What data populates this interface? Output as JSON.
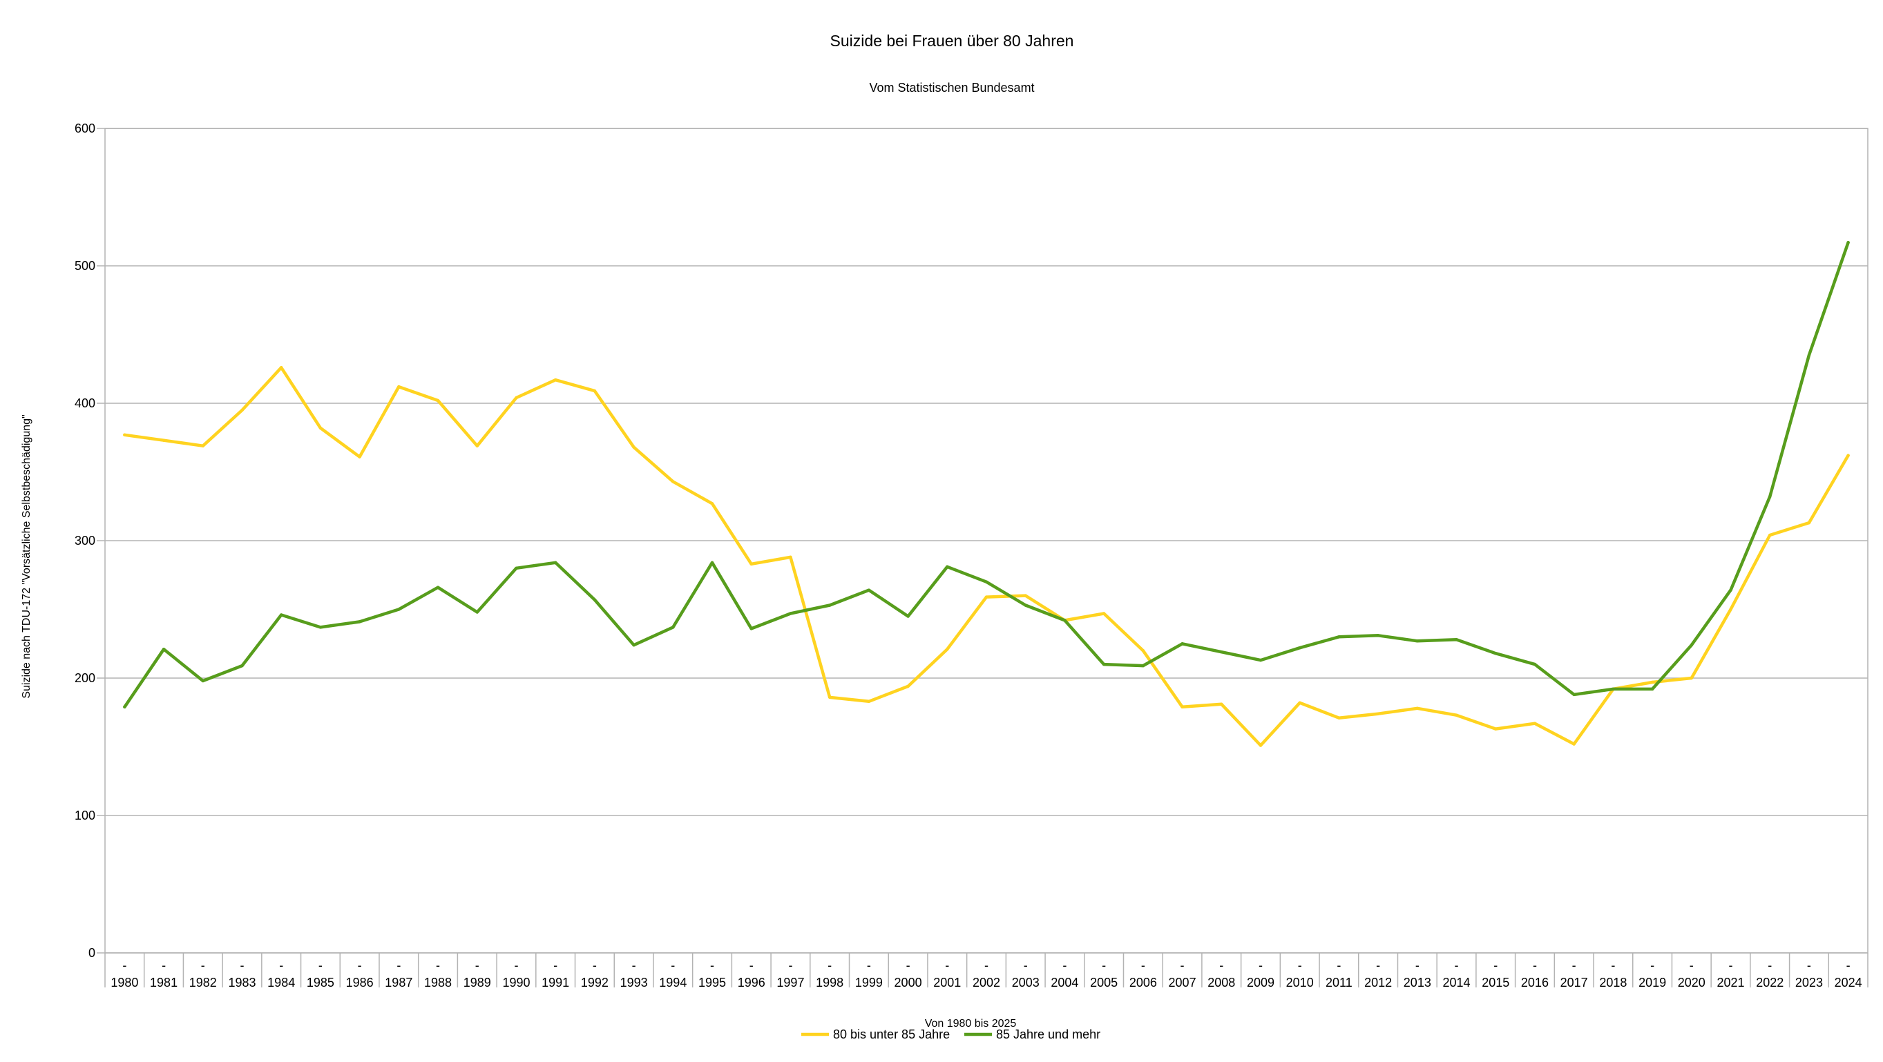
{
  "chart_data": {
    "type": "line",
    "title": "Suizide bei Frauen über 80 Jahren",
    "subtitle": "Vom Statistischen Bundesamt",
    "xlabel": "Von 1980 bis 2025",
    "ylabel": "Suizide nach TDU-172 \"Vorsätzliche Selbstbeschädigung\"",
    "ylim": [
      0,
      600
    ],
    "yticks": [
      "0",
      "100",
      "200",
      "300",
      "400",
      "500",
      "600"
    ],
    "ytick_values": [
      0,
      100,
      200,
      300,
      400,
      500,
      600
    ],
    "grid": true,
    "legend_position": "bottom",
    "category_dash": "-",
    "categories": [
      "1980",
      "1981",
      "1982",
      "1983",
      "1984",
      "1985",
      "1986",
      "1987",
      "1988",
      "1989",
      "1990",
      "1991",
      "1992",
      "1993",
      "1994",
      "1995",
      "1996",
      "1997",
      "1998",
      "1999",
      "2000",
      "2001",
      "2002",
      "2003",
      "2004",
      "2005",
      "2006",
      "2007",
      "2008",
      "2009",
      "2010",
      "2011",
      "2012",
      "2013",
      "2014",
      "2015",
      "2016",
      "2017",
      "2018",
      "2019",
      "2020",
      "2021",
      "2022",
      "2023",
      "2024"
    ],
    "series": [
      {
        "name": "80 bis unter 85 Jahre",
        "color": "#ffd320",
        "values": [
          377,
          373,
          369,
          395,
          426,
          382,
          361,
          412,
          402,
          369,
          404,
          417,
          409,
          368,
          343,
          327,
          283,
          288,
          186,
          183,
          194,
          221,
          259,
          260,
          242,
          247,
          220,
          179,
          181,
          151,
          182,
          171,
          174,
          178,
          173,
          163,
          167,
          152,
          192,
          197,
          200,
          250,
          304,
          313,
          362
        ]
      },
      {
        "name": "85 Jahre und mehr",
        "color": "#579d1c",
        "values": [
          179,
          221,
          198,
          209,
          246,
          237,
          241,
          250,
          266,
          248,
          280,
          284,
          257,
          224,
          237,
          284,
          236,
          247,
          253,
          264,
          245,
          281,
          270,
          253,
          242,
          210,
          209,
          225,
          219,
          213,
          222,
          230,
          231,
          227,
          228,
          218,
          210,
          188,
          192,
          192,
          224,
          264,
          332,
          435,
          517
        ]
      }
    ]
  }
}
